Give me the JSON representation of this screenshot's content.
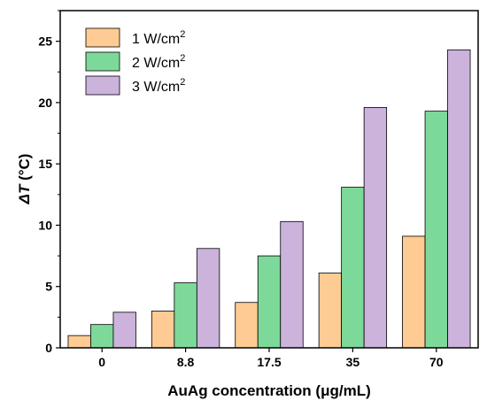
{
  "chart_data": {
    "type": "bar",
    "categories": [
      "0",
      "8.8",
      "17.5",
      "35",
      "70"
    ],
    "series": [
      {
        "name": "1 W/cm²",
        "name_base": "1 W/cm",
        "name_sup": "2",
        "color": "#FDCB93",
        "values": [
          1.0,
          3.0,
          3.7,
          6.1,
          9.1
        ]
      },
      {
        "name": "2 W/cm²",
        "name_base": "2 W/cm",
        "name_sup": "2",
        "color": "#7DD99A",
        "values": [
          1.9,
          5.3,
          7.5,
          13.1,
          19.3
        ]
      },
      {
        "name": "3 W/cm²",
        "name_base": "3 W/cm",
        "name_sup": "2",
        "color": "#CBB3DC",
        "values": [
          2.9,
          8.1,
          10.3,
          19.6,
          24.3
        ]
      }
    ],
    "xlabel": "AuAg concentration (μg/mL)",
    "ylabel_prefix": "ΔT",
    "ylabel_unit": " (°C)",
    "ylim": [
      0,
      27.5
    ],
    "yticks": [
      "0",
      "5",
      "10",
      "15",
      "20",
      "25"
    ],
    "grid": false,
    "legend_position": "top-left"
  }
}
